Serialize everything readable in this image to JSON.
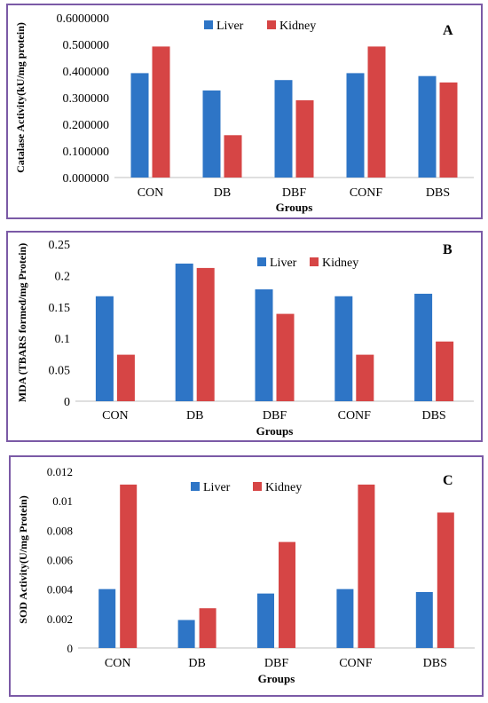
{
  "chart_data": [
    {
      "type": "bar",
      "panel_label": "A",
      "categories": [
        "CON",
        "DB",
        "DBF",
        "CONF",
        "DBS"
      ],
      "series": [
        {
          "name": "Liver",
          "values": [
            0.392,
            0.327,
            0.366,
            0.392,
            0.381
          ]
        },
        {
          "name": "Kidney",
          "values": [
            0.492,
            0.159,
            0.29,
            0.492,
            0.357
          ]
        }
      ],
      "xlabel": "Groups",
      "ylabel": "Catalase Activity(kU/mg protein)",
      "ylim": [
        0,
        0.6
      ],
      "yticks": [
        "0.000000",
        "0.100000",
        "0.200000",
        "0.300000",
        "0.400000",
        "0.500000",
        "0.6000000"
      ],
      "legend_position": "top-center",
      "colors": {
        "Liver": "#2e75c6",
        "Kidney": "#d64545"
      },
      "grid": false
    },
    {
      "type": "bar",
      "panel_label": "B",
      "categories": [
        "CON",
        "DB",
        "DBF",
        "CONF",
        "DBS"
      ],
      "series": [
        {
          "name": "Liver",
          "values": [
            0.167,
            0.219,
            0.178,
            0.167,
            0.171
          ]
        },
        {
          "name": "Kidney",
          "values": [
            0.074,
            0.212,
            0.139,
            0.074,
            0.095
          ]
        }
      ],
      "xlabel": "Groups",
      "ylabel": "MDA (TBARS formed/mg Protein)",
      "ylim": [
        0,
        0.25
      ],
      "yticks": [
        "0",
        "0.05",
        "0.1",
        "0.15",
        "0.2",
        "0.25"
      ],
      "legend_position": "top-right",
      "colors": {
        "Liver": "#2e75c6",
        "Kidney": "#d64545"
      },
      "grid": false
    },
    {
      "type": "bar",
      "panel_label": "C",
      "categories": [
        "CON",
        "DB",
        "DBF",
        "CONF",
        "DBS"
      ],
      "series": [
        {
          "name": "Liver",
          "values": [
            0.004,
            0.0019,
            0.0037,
            0.004,
            0.0038
          ]
        },
        {
          "name": "Kidney",
          "values": [
            0.0111,
            0.0027,
            0.0072,
            0.0111,
            0.0092
          ]
        }
      ],
      "xlabel": "Groups",
      "ylabel": "SOD Activity(U/mg Protein)",
      "ylim": [
        0,
        0.012
      ],
      "yticks": [
        "0",
        "0.002",
        "0.004",
        "0.006",
        "0.008",
        "0.01",
        "0.012"
      ],
      "legend_position": "top-center",
      "colors": {
        "Liver": "#2e75c6",
        "Kidney": "#d64545"
      },
      "grid": false
    }
  ]
}
